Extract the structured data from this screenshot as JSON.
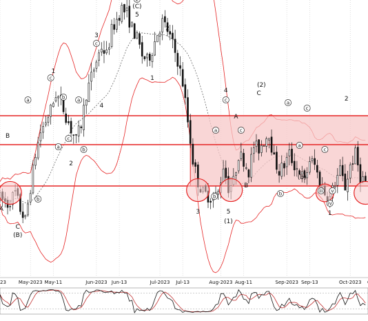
{
  "chart_data": {
    "type": "candlestick",
    "colors": {
      "background": "#ffffff",
      "grid": "#c8c8c8",
      "band": "#e52222",
      "band_fill": "#f7c8c8",
      "sma": "#666666",
      "up_body": "#ffffff",
      "down_body": "#111111",
      "candle_edge": "#111111",
      "highlight_up": "#2e9e2e",
      "highlight_down": "#c03030",
      "osc_k": "#111111",
      "osc_d": "#c03030"
    },
    "x_axis": {
      "min": 0,
      "max": 145,
      "ticks": [
        {
          "label": "2023",
          "index": 0
        },
        {
          "label": "May-2023",
          "index": 12
        },
        {
          "label": "May-11",
          "index": 21
        },
        {
          "label": "Jun-2023",
          "index": 38
        },
        {
          "label": "Jun-13",
          "index": 47
        },
        {
          "label": "Jul-2023",
          "index": 63
        },
        {
          "label": "Jul-13",
          "index": 72
        },
        {
          "label": "Aug-2023",
          "index": 87
        },
        {
          "label": "Aug-11",
          "index": 96
        },
        {
          "label": "Sep-2023",
          "index": 113
        },
        {
          "label": "Sep-13",
          "index": 122
        },
        {
          "label": "Oct-2023",
          "index": 138
        },
        {
          "label": "Oc",
          "index": 146
        }
      ]
    },
    "y_range": [
      0,
      100
    ],
    "candles": [],
    "price_path": [
      [
        0,
        28
      ],
      [
        3,
        26
      ],
      [
        6,
        30
      ],
      [
        8,
        24
      ],
      [
        10,
        20
      ],
      [
        12,
        32
      ],
      [
        14,
        44
      ],
      [
        16,
        52
      ],
      [
        18,
        56
      ],
      [
        20,
        60
      ],
      [
        22,
        66
      ],
      [
        24,
        63
      ],
      [
        26,
        58
      ],
      [
        28,
        53
      ],
      [
        30,
        49
      ],
      [
        32,
        55
      ],
      [
        34,
        66
      ],
      [
        36,
        72
      ],
      [
        38,
        78
      ],
      [
        40,
        83
      ],
      [
        42,
        80
      ],
      [
        44,
        89
      ],
      [
        46,
        93
      ],
      [
        48,
        97
      ],
      [
        50,
        95
      ],
      [
        52,
        90
      ],
      [
        54,
        86
      ],
      [
        56,
        80
      ],
      [
        58,
        78
      ],
      [
        60,
        82
      ],
      [
        62,
        88
      ],
      [
        64,
        92
      ],
      [
        66,
        89
      ],
      [
        68,
        84
      ],
      [
        70,
        78
      ],
      [
        72,
        70
      ],
      [
        74,
        56
      ],
      [
        76,
        42
      ],
      [
        78,
        34
      ],
      [
        80,
        30
      ],
      [
        82,
        29
      ],
      [
        84,
        28
      ],
      [
        86,
        30
      ],
      [
        88,
        40
      ],
      [
        90,
        32
      ],
      [
        92,
        34
      ],
      [
        94,
        44
      ],
      [
        96,
        42
      ],
      [
        98,
        38
      ],
      [
        100,
        47
      ],
      [
        102,
        46
      ],
      [
        104,
        49
      ],
      [
        106,
        52
      ],
      [
        108,
        42
      ],
      [
        110,
        38
      ],
      [
        112,
        40
      ],
      [
        114,
        44
      ],
      [
        116,
        40
      ],
      [
        118,
        38
      ],
      [
        120,
        34
      ],
      [
        122,
        42
      ],
      [
        124,
        40
      ],
      [
        126,
        34
      ],
      [
        128,
        30
      ],
      [
        130,
        28
      ],
      [
        132,
        34
      ],
      [
        134,
        38
      ],
      [
        136,
        32
      ],
      [
        138,
        40
      ],
      [
        140,
        44
      ],
      [
        142,
        36
      ],
      [
        144,
        34
      ]
    ],
    "sma_line": [],
    "bollinger_upper": [],
    "bollinger_lower": [],
    "range_levels": [
      58.0,
      47.5,
      32.5
    ],
    "range_box": {
      "x0": 75,
      "x1": 146,
      "y_top": 58.0,
      "y_bottom": 32.5
    },
    "circles": [
      {
        "x": 4,
        "y": 30,
        "r": 4.5
      },
      {
        "x": 78,
        "y": 31,
        "r": 4.5
      },
      {
        "x": 91,
        "y": 31,
        "r": 4.5
      },
      {
        "x": 128,
        "y": 30,
        "r": 3.5
      },
      {
        "x": 144,
        "y": 30,
        "r": 4.5
      }
    ],
    "wave_labels": [
      {
        "text": "A",
        "x": 0.5,
        "y": 23.5,
        "plain": true
      },
      {
        "text": "B",
        "x": 3,
        "y": 50,
        "plain": true
      },
      {
        "text": "C",
        "x": 7,
        "y": 17,
        "plain": true
      },
      {
        "text": "(B)",
        "x": 7,
        "y": 14,
        "plain": true
      },
      {
        "text": "a",
        "x": 11,
        "y": 63,
        "plain": false
      },
      {
        "text": "b",
        "x": 15,
        "y": 27,
        "plain": false
      },
      {
        "text": "c",
        "x": 20,
        "y": 71,
        "plain": false
      },
      {
        "text": "1",
        "x": 21,
        "y": 73.5,
        "plain": true
      },
      {
        "text": "a",
        "x": 23,
        "y": 46,
        "plain": false
      },
      {
        "text": "b",
        "x": 25,
        "y": 64,
        "plain": false
      },
      {
        "text": "c",
        "x": 27,
        "y": 49,
        "plain": false
      },
      {
        "text": "2",
        "x": 28,
        "y": 40,
        "plain": true
      },
      {
        "text": "a",
        "x": 31,
        "y": 63,
        "plain": false
      },
      {
        "text": "b",
        "x": 33,
        "y": 45,
        "plain": false
      },
      {
        "text": "c",
        "x": 38,
        "y": 83.5,
        "plain": false
      },
      {
        "text": "3",
        "x": 38,
        "y": 86.5,
        "plain": true
      },
      {
        "text": "4",
        "x": 40,
        "y": 61,
        "plain": true
      },
      {
        "text": "5",
        "x": 54,
        "y": 94,
        "plain": true
      },
      {
        "text": "(C)",
        "x": 54,
        "y": 97,
        "plain": true
      },
      {
        "text": "2",
        "x": 54,
        "y": 99.5,
        "plain": false
      },
      {
        "text": "2",
        "x": 66,
        "y": 89,
        "plain": true
      },
      {
        "text": "1",
        "x": 60,
        "y": 71,
        "plain": true
      },
      {
        "text": "3",
        "x": 78,
        "y": 22.5,
        "plain": true
      },
      {
        "text": "4",
        "x": 89,
        "y": 66.5,
        "plain": true
      },
      {
        "text": "c",
        "x": 89,
        "y": 63,
        "plain": false
      },
      {
        "text": "A",
        "x": 93,
        "y": 57,
        "plain": true
      },
      {
        "text": "5",
        "x": 90,
        "y": 22.5,
        "plain": true
      },
      {
        "text": "(1)",
        "x": 90,
        "y": 19,
        "plain": true
      },
      {
        "text": "a",
        "x": 85,
        "y": 52,
        "plain": false
      },
      {
        "text": "b",
        "x": 84.5,
        "y": 28,
        "plain": false
      },
      {
        "text": "c",
        "x": 95,
        "y": 52,
        "plain": false
      },
      {
        "text": "B",
        "x": 97,
        "y": 32,
        "plain": true
      },
      {
        "text": "(2)",
        "x": 103,
        "y": 68.5,
        "plain": true
      },
      {
        "text": "C",
        "x": 102,
        "y": 65.5,
        "plain": true
      },
      {
        "text": "a",
        "x": 113.5,
        "y": 62,
        "plain": false
      },
      {
        "text": "b",
        "x": 110.5,
        "y": 29,
        "plain": false
      },
      {
        "text": "c",
        "x": 121,
        "y": 60,
        "plain": false
      },
      {
        "text": "a",
        "x": 118,
        "y": 46.5,
        "plain": false
      },
      {
        "text": "(b)",
        "x": 119,
        "y": 35,
        "plain": true
      },
      {
        "text": "c",
        "x": 128,
        "y": 45,
        "plain": false
      },
      {
        "text": "iii",
        "x": 126.5,
        "y": 30,
        "plain": false
      },
      {
        "text": "iv",
        "x": 130,
        "y": 25.5,
        "plain": false
      },
      {
        "text": "1",
        "x": 130,
        "y": 22,
        "plain": true
      },
      {
        "text": "2",
        "x": 136.5,
        "y": 63.5,
        "plain": true
      },
      {
        "text": "v",
        "x": 131,
        "y": 30,
        "plain": false
      }
    ],
    "oscillator": {
      "k": [],
      "d": []
    }
  }
}
